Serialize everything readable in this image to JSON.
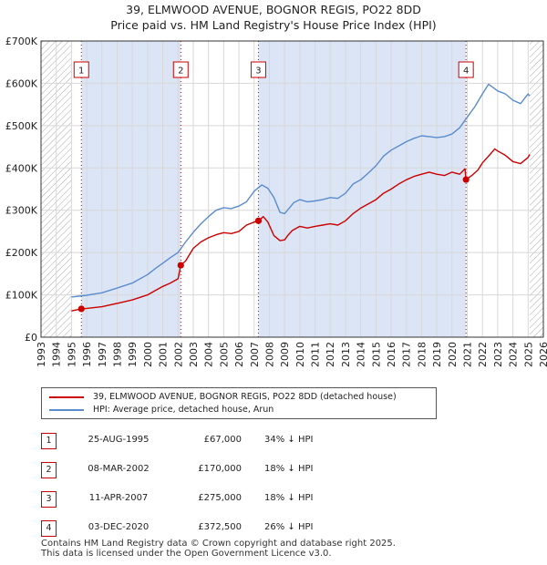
{
  "title_line1": "39, ELMWOOD AVENUE, BOGNOR REGIS, PO22 8DD",
  "title_line2": "Price paid vs. HM Land Registry's House Price Index (HPI)",
  "legend": {
    "property": "39, ELMWOOD AVENUE, BOGNOR REGIS, PO22 8DD (detached house)",
    "hpi": "HPI: Average price, detached house, Arun"
  },
  "sales": [
    {
      "num": "1",
      "date": "25-AUG-1995",
      "price": "£67,000",
      "rel": "34% ↓ HPI"
    },
    {
      "num": "2",
      "date": "08-MAR-2002",
      "price": "£170,000",
      "rel": "18% ↓ HPI"
    },
    {
      "num": "3",
      "date": "11-APR-2007",
      "price": "£275,000",
      "rel": "18% ↓ HPI"
    },
    {
      "num": "4",
      "date": "03-DEC-2020",
      "price": "£372,500",
      "rel": "26% ↓ HPI"
    }
  ],
  "footer_line1": "Contains HM Land Registry data © Crown copyright and database right 2025.",
  "footer_line2": "This data is licensed under the Open Government Licence v3.0.",
  "colors": {
    "property": "#cc0000",
    "hpi": "#5b8ccf",
    "shade": "#dbe5f5",
    "grid": "#d8d8d8"
  },
  "chart_data": {
    "type": "line",
    "title": "39, ELMWOOD AVENUE, BOGNOR REGIS, PO22 8DD — Price paid vs. HM Land Registry's House Price Index (HPI)",
    "xlim": [
      1993,
      2026
    ],
    "ylim": [
      0,
      700000
    ],
    "x_ticks": [
      1993,
      1994,
      1995,
      1996,
      1997,
      1998,
      1999,
      2000,
      2001,
      2002,
      2003,
      2004,
      2005,
      2006,
      2007,
      2008,
      2009,
      2010,
      2011,
      2012,
      2013,
      2014,
      2015,
      2016,
      2017,
      2018,
      2019,
      2020,
      2021,
      2022,
      2023,
      2024,
      2025,
      2026
    ],
    "y_ticks": [
      0,
      100000,
      200000,
      300000,
      400000,
      500000,
      600000,
      700000
    ],
    "y_tick_labels": [
      "£0",
      "£100K",
      "£200K",
      "£300K",
      "£400K",
      "£500K",
      "£600K",
      "£700K"
    ],
    "hatched_ranges": [
      [
        1993,
        1995.0
      ],
      [
        2025.1,
        2026
      ]
    ],
    "shaded_ranges": [
      [
        1995.65,
        2002.18
      ],
      [
        2007.28,
        2020.92
      ]
    ],
    "sale_markers": [
      {
        "label": "1",
        "x": 1995.65,
        "y": 67000
      },
      {
        "label": "2",
        "x": 2002.18,
        "y": 170000
      },
      {
        "label": "3",
        "x": 2007.28,
        "y": 275000
      },
      {
        "label": "4",
        "x": 2020.92,
        "y": 372500
      }
    ],
    "series": [
      {
        "name": "39, ELMWOOD AVENUE, BOGNOR REGIS, PO22 8DD (detached house)",
        "x": [
          1995.0,
          1995.65,
          1996.0,
          1997.0,
          1998.0,
          1999.0,
          2000.0,
          2000.5,
          2001.0,
          2001.5,
          2002.0,
          2002.18,
          2002.5,
          2003.0,
          2003.5,
          2004.0,
          2004.5,
          2005.0,
          2005.5,
          2006.0,
          2006.5,
          2007.0,
          2007.28,
          2007.6,
          2007.9,
          2008.3,
          2008.7,
          2009.0,
          2009.2,
          2009.5,
          2010.0,
          2010.5,
          2011.0,
          2011.5,
          2012.0,
          2012.5,
          2013.0,
          2013.5,
          2014.0,
          2014.5,
          2015.0,
          2015.5,
          2016.0,
          2016.5,
          2017.0,
          2017.5,
          2018.0,
          2018.5,
          2019.0,
          2019.5,
          2020.0,
          2020.5,
          2020.85,
          2020.92,
          2021.3,
          2021.7,
          2022.0,
          2022.5,
          2022.8,
          2023.0,
          2023.5,
          2024.0,
          2024.5,
          2025.0,
          2025.1
        ],
        "values": [
          62000,
          67000,
          68000,
          72000,
          80000,
          88000,
          100000,
          110000,
          120000,
          128000,
          138000,
          170000,
          180000,
          210000,
          225000,
          235000,
          242000,
          247000,
          245000,
          250000,
          265000,
          272000,
          275000,
          285000,
          272000,
          240000,
          228000,
          230000,
          240000,
          252000,
          262000,
          258000,
          262000,
          265000,
          268000,
          265000,
          275000,
          292000,
          305000,
          315000,
          325000,
          340000,
          350000,
          362000,
          372000,
          380000,
          385000,
          390000,
          385000,
          382000,
          390000,
          385000,
          398000,
          372500,
          382000,
          395000,
          412000,
          432000,
          445000,
          440000,
          430000,
          415000,
          410000,
          425000,
          432000
        ]
      },
      {
        "name": "HPI: Average price, detached house, Arun",
        "x": [
          1995.0,
          1995.5,
          1996.0,
          1997.0,
          1998.0,
          1999.0,
          2000.0,
          2000.5,
          2001.0,
          2001.5,
          2002.0,
          2002.5,
          2003.0,
          2003.5,
          2004.0,
          2004.5,
          2005.0,
          2005.5,
          2006.0,
          2006.5,
          2007.0,
          2007.5,
          2007.9,
          2008.3,
          2008.7,
          2009.0,
          2009.3,
          2009.6,
          2010.0,
          2010.5,
          2011.0,
          2011.5,
          2012.0,
          2012.5,
          2013.0,
          2013.5,
          2014.0,
          2014.5,
          2015.0,
          2015.5,
          2016.0,
          2016.5,
          2017.0,
          2017.5,
          2018.0,
          2018.5,
          2019.0,
          2019.5,
          2020.0,
          2020.5,
          2021.0,
          2021.5,
          2022.0,
          2022.4,
          2022.7,
          2023.0,
          2023.5,
          2024.0,
          2024.5,
          2025.0,
          2025.1
        ],
        "values": [
          95000,
          97000,
          99000,
          105000,
          116000,
          128000,
          148000,
          162000,
          175000,
          188000,
          200000,
          225000,
          248000,
          268000,
          285000,
          300000,
          306000,
          304000,
          310000,
          320000,
          345000,
          360000,
          352000,
          330000,
          295000,
          292000,
          305000,
          318000,
          325000,
          320000,
          322000,
          325000,
          330000,
          328000,
          340000,
          362000,
          372000,
          388000,
          405000,
          428000,
          442000,
          452000,
          462000,
          470000,
          476000,
          474000,
          472000,
          474000,
          480000,
          495000,
          520000,
          545000,
          575000,
          598000,
          590000,
          582000,
          575000,
          560000,
          552000,
          575000,
          570000
        ]
      }
    ]
  }
}
